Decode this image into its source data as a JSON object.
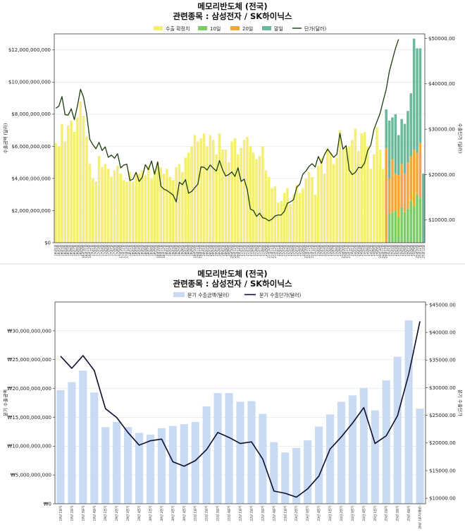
{
  "chart_data": [
    {
      "type": "bar",
      "title": "메모리반도체 (전국)",
      "subtitle": "관련종목 : 삼성전자 / SK하이닉스",
      "ylabel": "수출금액 (달러)",
      "y2label": "수출단가 (달러)",
      "ylim": [
        0,
        13000000000
      ],
      "y2lim": [
        5000,
        51000
      ],
      "yticks": [
        "$0",
        "$2,000,000,000",
        "$4,000,000,000",
        "$6,000,000,000",
        "$8,000,000,000",
        "$10,000,000,000",
        "$12,000,000,000"
      ],
      "y2ticks": [
        "$10000.00",
        "$20000.00",
        "$30000.00",
        "$40000.00",
        "$50000.00"
      ],
      "legend": [
        "수출 확정치",
        "10일",
        "20일",
        "말일",
        "단가(달러)"
      ],
      "colors": {
        "confirmed": "#f4ee73",
        "d10": "#7ccc66",
        "d20": "#f0a83c",
        "end": "#6ab99b",
        "line": "#1d3d0c"
      },
      "categories": [
        "16년1월",
        "16년2월",
        "16년3월",
        "16년4월",
        "16년5월",
        "16년6월",
        "16년7월",
        "16년8월",
        "16년9월",
        "16년10월",
        "16년11월",
        "16년12월",
        "17년1월",
        "17년2월",
        "17년3월",
        "17년4월",
        "17년5월",
        "17년6월",
        "17년7월",
        "17년8월",
        "17년9월",
        "17년10월",
        "17년11월",
        "17년12월",
        "18년1월",
        "18년2월",
        "18년3월",
        "18년4월",
        "18년5월",
        "18년6월",
        "18년7월",
        "18년8월",
        "18년9월",
        "18년10월",
        "18년11월",
        "18년12월",
        "19년1월",
        "19년2월",
        "19년3월",
        "19년4월",
        "19년5월",
        "19년6월",
        "19년7월",
        "19년8월",
        "19년9월",
        "19년10월",
        "19년11월",
        "19년12월",
        "20년1월",
        "20년2월",
        "20년3월",
        "20년4월",
        "20년5월",
        "20년6월",
        "20년7월",
        "20년8월",
        "20년9월",
        "20년10월",
        "20년11월",
        "20년12월",
        "21년1월",
        "21년2월",
        "21년3월",
        "21년4월",
        "21년5월",
        "21년6월",
        "21년7월",
        "21년8월",
        "21년9월",
        "21년10월",
        "21년11월",
        "21년12월",
        "22년1월",
        "22년2월",
        "22년3월",
        "22년4월",
        "22년5월",
        "22년6월",
        "22년7월",
        "22년8월",
        "22년9월",
        "22년10월",
        "22년11월",
        "22년12월",
        "23년1월",
        "23년2월",
        "23년3월",
        "23년4월",
        "23년5월",
        "23년6월",
        "23년7월",
        "23년8월",
        "23년9월",
        "23년10월",
        "23년11월",
        "23년12월",
        "24년1월",
        "24년2월",
        "24년3월",
        "24년4월",
        "24년5월",
        "24년6월",
        "24년7월",
        "24년8월",
        "24년9월",
        "24년10월",
        "24년11월",
        "24년12월",
        "25년1월",
        "25년2월",
        "25년3월",
        "25년4월",
        "25년5월",
        "25년6월",
        "25년7월",
        "25년8월",
        "25년9월",
        "25년10월",
        "25년11월",
        "25년12월"
      ],
      "confirmed": [
        6.2,
        6.0,
        7.4,
        6.3,
        7.3,
        7.6,
        6.9,
        7.8,
        8.8,
        7.9,
        6.6,
        4.9,
        4.0,
        3.8,
        5.4,
        4.7,
        4.9,
        4.6,
        4.1,
        4.5,
        4.8,
        4.3,
        3.9,
        3.8,
        4.4,
        3.8,
        4.2,
        4.3,
        4.5,
        4.2,
        4.8,
        4.0,
        4.5,
        5.0,
        4.7,
        4.3,
        4.6,
        4.1,
        3.9,
        4.7,
        4.9,
        4.4,
        5.3,
        5.6,
        6.0,
        6.7,
        6.3,
        6.5,
        6.8,
        6.0,
        6.7,
        6.4,
        5.5,
        6.8,
        5.8,
        5.8,
        5.0,
        6.3,
        6.5,
        5.5,
        5.9,
        6.4,
        6.6,
        6.0,
        5.6,
        5.2,
        5.4,
        6.0,
        4.5,
        4.1,
        3.4,
        3.5,
        2.5,
        2.6,
        3.1,
        3.4,
        2.4,
        3.0,
        3.6,
        3.1,
        3.4,
        4.0,
        4.4,
        4.1,
        3.0,
        4.8,
        5.3,
        4.3,
        5.9,
        5.6,
        4.9,
        5.3,
        7.0,
        5.8,
        5.9,
        6.0,
        6.4,
        7.1,
        5.7,
        6.8,
        6.9,
        6.0,
        4.6,
        5.5,
        7.2,
        5.8,
        4.6,
        null,
        null,
        null,
        null,
        null,
        null,
        null,
        null,
        null,
        null,
        null,
        null
      ],
      "d10": [
        null,
        null,
        null,
        null,
        null,
        null,
        null,
        null,
        null,
        null,
        null,
        null,
        null,
        null,
        null,
        null,
        null,
        null,
        null,
        null,
        null,
        null,
        null,
        null,
        null,
        null,
        null,
        null,
        null,
        null,
        null,
        null,
        null,
        null,
        null,
        null,
        null,
        null,
        null,
        null,
        null,
        null,
        null,
        null,
        null,
        null,
        null,
        null,
        null,
        null,
        null,
        null,
        null,
        null,
        null,
        null,
        null,
        null,
        null,
        null,
        null,
        null,
        null,
        null,
        null,
        null,
        null,
        null,
        null,
        null,
        null,
        null,
        null,
        null,
        null,
        null,
        null,
        null,
        null,
        null,
        null,
        null,
        null,
        null,
        null,
        null,
        null,
        null,
        null,
        null,
        null,
        null,
        null,
        null,
        null,
        null,
        null,
        null,
        null,
        null,
        null,
        null,
        null,
        null,
        null,
        null,
        null,
        0.0,
        1.8,
        1.9,
        2.0,
        1.6,
        2.2,
        1.9,
        2.1,
        2.6,
        2.3,
        3.0,
        2.8,
        null
      ],
      "d20": [
        null,
        null,
        null,
        null,
        null,
        null,
        null,
        null,
        null,
        null,
        null,
        null,
        null,
        null,
        null,
        null,
        null,
        null,
        null,
        null,
        null,
        null,
        null,
        null,
        null,
        null,
        null,
        null,
        null,
        null,
        null,
        null,
        null,
        null,
        null,
        null,
        null,
        null,
        null,
        null,
        null,
        null,
        null,
        null,
        null,
        null,
        null,
        null,
        null,
        null,
        null,
        null,
        null,
        null,
        null,
        null,
        null,
        null,
        null,
        null,
        null,
        null,
        null,
        null,
        null,
        null,
        null,
        null,
        null,
        null,
        null,
        null,
        null,
        null,
        null,
        null,
        null,
        null,
        null,
        null,
        null,
        null,
        null,
        null,
        null,
        null,
        null,
        null,
        null,
        null,
        null,
        null,
        null,
        null,
        null,
        null,
        null,
        null,
        null,
        null,
        null,
        null,
        null,
        null,
        null,
        null,
        null,
        5.9,
        2.2,
        3.3,
        2.3,
        2.6,
        2.7,
        2.4,
        2.9,
        2.8,
        3.5,
        2.6,
        3.4,
        null
      ],
      "end": [
        null,
        null,
        null,
        null,
        null,
        null,
        null,
        null,
        null,
        null,
        null,
        null,
        null,
        null,
        null,
        null,
        null,
        null,
        null,
        null,
        null,
        null,
        null,
        null,
        null,
        null,
        null,
        null,
        null,
        null,
        null,
        null,
        null,
        null,
        null,
        null,
        null,
        null,
        null,
        null,
        null,
        null,
        null,
        null,
        null,
        null,
        null,
        null,
        null,
        null,
        null,
        null,
        null,
        null,
        null,
        null,
        null,
        null,
        null,
        null,
        null,
        null,
        null,
        null,
        null,
        null,
        null,
        null,
        null,
        null,
        null,
        null,
        null,
        null,
        null,
        null,
        null,
        null,
        null,
        null,
        null,
        null,
        null,
        null,
        null,
        null,
        null,
        null,
        null,
        null,
        null,
        null,
        null,
        null,
        null,
        null,
        null,
        null,
        null,
        null,
        null,
        null,
        null,
        null,
        null,
        null,
        null,
        2.4,
        3.6,
        2.6,
        3.7,
        2.5,
        2.8,
        3.1,
        3.2,
        3.9,
        6.9,
        6.5,
        5.9,
        4.3
      ],
      "unit_price": [
        34600,
        35100,
        37200,
        33200,
        33100,
        34500,
        32100,
        35100,
        38800,
        37000,
        33300,
        27800,
        26600,
        25700,
        27100,
        25300,
        26100,
        23800,
        24300,
        23600,
        24600,
        21500,
        22100,
        22300,
        18700,
        19000,
        20500,
        18500,
        19400,
        22200,
        21100,
        23000,
        20100,
        22800,
        17500,
        16800,
        16500,
        16000,
        15500,
        14000,
        18300,
        17800,
        18900,
        15900,
        16300,
        17100,
        17900,
        21700,
        21600,
        21000,
        22100,
        21400,
        20800,
        23100,
        21100,
        19700,
        20000,
        20600,
        19600,
        21500,
        18500,
        19000,
        16700,
        12400,
        12100,
        10800,
        11500,
        10500,
        10300,
        9800,
        10200,
        10900,
        11100,
        11100,
        11900,
        13700,
        14000,
        14500,
        17200,
        17900,
        20100,
        20800,
        21800,
        22400,
        21700,
        24000,
        22500,
        24400,
        25600,
        24700,
        23800,
        24500,
        29100,
        25600,
        26400,
        21000,
        20000,
        20500,
        21600,
        21500,
        22600,
        25300,
        26500,
        29900,
        31700,
        33500,
        36200,
        38800,
        42700,
        45300,
        47800,
        49800
      ],
      "unit_price_visible_count": 112
    },
    {
      "type": "bar",
      "title": "메모리반도체 (전국)",
      "subtitle": "관련종목 : 삼성전자 / SK하이닉스",
      "ylabel": "분기 수출금액",
      "y2label": "분기 수출단가",
      "ylim": [
        0,
        35000000000
      ],
      "y2lim": [
        9000,
        45500
      ],
      "yticks": [
        "₩0",
        "₩5,000,000,000",
        "₩10,000,000,000",
        "₩15,000,000,000",
        "₩20,000,000,000",
        "₩25,000,000,000",
        "₩30,000,000,000"
      ],
      "y2ticks": [
        "$10000.00",
        "$15000.00",
        "$20000.00",
        "$25000.00",
        "$30000.00",
        "$35000.00",
        "$40000.00",
        "$45000.00"
      ],
      "legend": [
        "분기 수출금액(달러)",
        "분기 수출단가(달러)"
      ],
      "colors": {
        "bar": "#c9dbf3",
        "line": "#0d0d2a"
      },
      "categories": [
        "18년 1분기",
        "18년 2분기",
        "18년 3분기",
        "18년 4분기",
        "19년 1분기",
        "19년 2분기",
        "19년 3분기",
        "19년 4분기",
        "20년 1분기",
        "20년 2분기",
        "20년 3분기",
        "20년 4분기",
        "21년 1분기",
        "21년 2분기",
        "21년 3분기",
        "21년 4분기",
        "22년 1분기",
        "22년 2분기",
        "22년 3분기",
        "22년 4분기",
        "23년 1분기",
        "23년 2분기",
        "23년 3분기",
        "23년 4분기",
        "24년 1분기",
        "24년 2분기",
        "24년 3분기",
        "24년 4분기",
        "25년 1분기",
        "25년 2분기",
        "25년 3분기",
        "25년 4분기",
        "26년 1분기(예상)"
      ],
      "values": [
        19.7,
        21.1,
        23.1,
        19.3,
        13.3,
        14.2,
        13.3,
        12.3,
        12.0,
        13.1,
        13.5,
        13.8,
        14.2,
        16.9,
        19.2,
        19.2,
        17.7,
        17.8,
        15.6,
        10.7,
        8.9,
        9.7,
        11.0,
        13.4,
        15.5,
        17.7,
        18.8,
        20.1,
        16.2,
        21.4,
        25.5,
        31.8,
        16.5
      ],
      "unit_price": [
        35700,
        33500,
        35800,
        33100,
        26200,
        24600,
        21900,
        19600,
        20400,
        20700,
        16600,
        15800,
        16800,
        18800,
        21900,
        21000,
        19900,
        20200,
        17100,
        11300,
        10900,
        10200,
        11700,
        14000,
        18900,
        21100,
        23600,
        26400,
        19900,
        21300,
        24900,
        32400,
        42000
      ]
    }
  ]
}
